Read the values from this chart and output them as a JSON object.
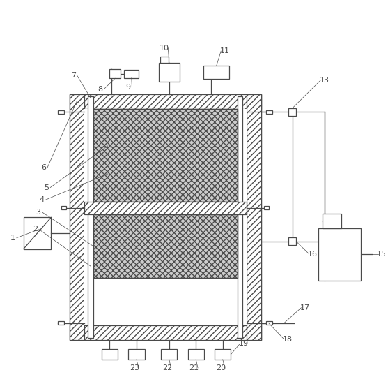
{
  "fig_width": 5.57,
  "fig_height": 5.5,
  "dpi": 100,
  "bg_color": "#ffffff",
  "line_color": "#4a4a4a",
  "ox": 0.175,
  "oy": 0.115,
  "ow": 0.5,
  "oh": 0.64,
  "wall_t": 0.038,
  "fs": 8.0
}
